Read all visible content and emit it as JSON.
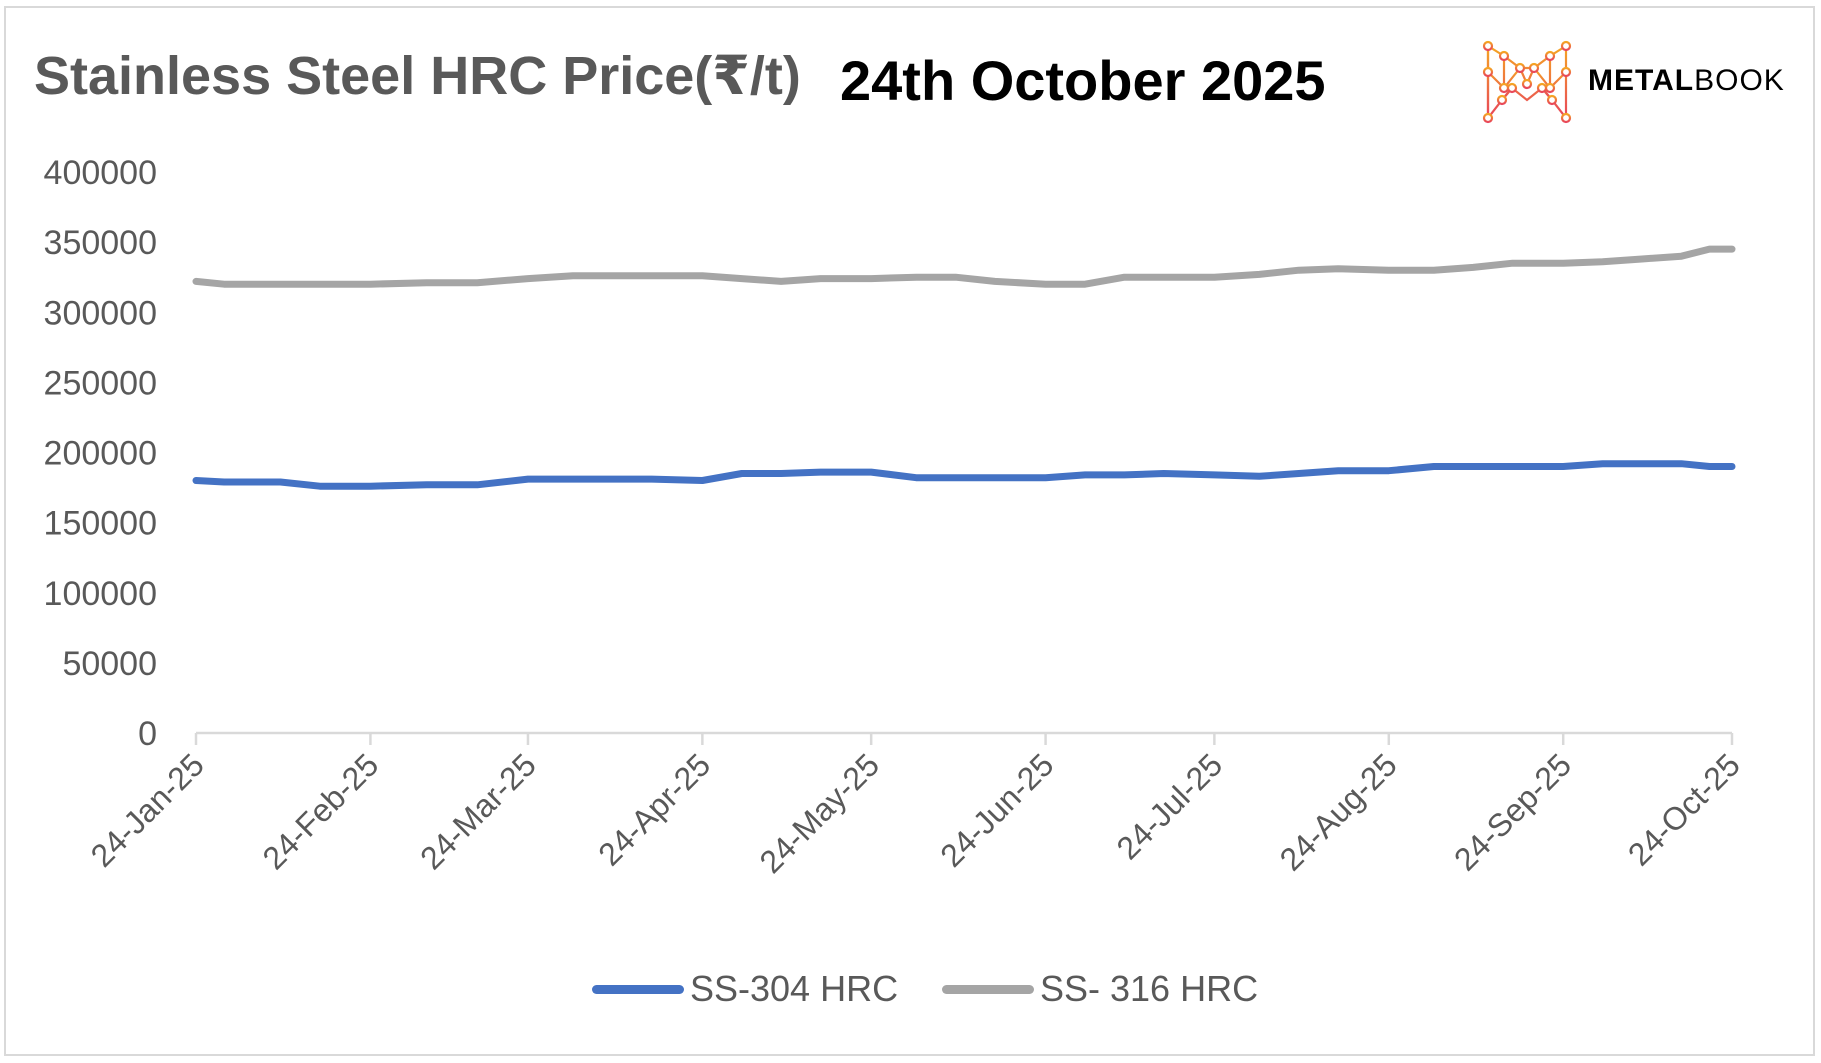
{
  "header": {
    "title": "Stainless Steel HRC Price(₹/t)",
    "date": "24th October 2025",
    "brand_part1": "METAL",
    "brand_part2": "BOOK"
  },
  "colors": {
    "series1": "#4472C4",
    "series2": "#A5A5A5",
    "logo_top": "#F5A623",
    "logo_bottom": "#E8455B"
  },
  "chart_data": {
    "type": "line",
    "title": "Stainless Steel HRC Price(₹/t)",
    "xlabel": "",
    "ylabel": "",
    "ylim": [
      0,
      400000
    ],
    "yticks": [
      0,
      50000,
      100000,
      150000,
      200000,
      250000,
      300000,
      350000,
      400000
    ],
    "xtick_labels": [
      "24-Jan-25",
      "24-Feb-25",
      "24-Mar-25",
      "24-Apr-25",
      "24-May-25",
      "24-Jun-25",
      "24-Jul-25",
      "24-Aug-25",
      "24-Sep-25",
      "24-Oct-25"
    ],
    "x_range": [
      "24-Jan-25",
      "24-Oct-25"
    ],
    "grid": false,
    "legend": "bottom",
    "series": [
      {
        "name": "SS-304 HRC",
        "points": [
          [
            "24-Jan-25",
            180000
          ],
          [
            "29-Jan-25",
            179000
          ],
          [
            "08-Feb-25",
            179000
          ],
          [
            "15-Feb-25",
            176000
          ],
          [
            "24-Feb-25",
            176000
          ],
          [
            "06-Mar-25",
            177000
          ],
          [
            "15-Mar-25",
            177000
          ],
          [
            "24-Mar-25",
            181000
          ],
          [
            "01-Apr-25",
            181000
          ],
          [
            "15-Apr-25",
            181000
          ],
          [
            "24-Apr-25",
            180000
          ],
          [
            "01-May-25",
            185000
          ],
          [
            "08-May-25",
            185000
          ],
          [
            "15-May-25",
            186000
          ],
          [
            "24-May-25",
            186000
          ],
          [
            "01-Jun-25",
            182000
          ],
          [
            "08-Jun-25",
            182000
          ],
          [
            "15-Jun-25",
            182000
          ],
          [
            "24-Jun-25",
            182000
          ],
          [
            "01-Jul-25",
            184000
          ],
          [
            "08-Jul-25",
            184000
          ],
          [
            "15-Jul-25",
            185000
          ],
          [
            "24-Jul-25",
            184000
          ],
          [
            "01-Aug-25",
            183000
          ],
          [
            "08-Aug-25",
            185000
          ],
          [
            "15-Aug-25",
            187000
          ],
          [
            "24-Aug-25",
            187000
          ],
          [
            "01-Sep-25",
            190000
          ],
          [
            "08-Sep-25",
            190000
          ],
          [
            "15-Sep-25",
            190000
          ],
          [
            "24-Sep-25",
            190000
          ],
          [
            "01-Oct-25",
            192000
          ],
          [
            "08-Oct-25",
            192000
          ],
          [
            "15-Oct-25",
            192000
          ],
          [
            "20-Oct-25",
            190000
          ],
          [
            "24-Oct-25",
            190000
          ]
        ]
      },
      {
        "name": "SS- 316 HRC",
        "points": [
          [
            "24-Jan-25",
            322000
          ],
          [
            "29-Jan-25",
            320000
          ],
          [
            "08-Feb-25",
            320000
          ],
          [
            "15-Feb-25",
            320000
          ],
          [
            "24-Feb-25",
            320000
          ],
          [
            "06-Mar-25",
            321000
          ],
          [
            "15-Mar-25",
            321000
          ],
          [
            "24-Mar-25",
            324000
          ],
          [
            "01-Apr-25",
            326000
          ],
          [
            "15-Apr-25",
            326000
          ],
          [
            "24-Apr-25",
            326000
          ],
          [
            "01-May-25",
            324000
          ],
          [
            "08-May-25",
            322000
          ],
          [
            "15-May-25",
            324000
          ],
          [
            "24-May-25",
            324000
          ],
          [
            "01-Jun-25",
            325000
          ],
          [
            "08-Jun-25",
            325000
          ],
          [
            "15-Jun-25",
            322000
          ],
          [
            "24-Jun-25",
            320000
          ],
          [
            "01-Jul-25",
            320000
          ],
          [
            "08-Jul-25",
            325000
          ],
          [
            "15-Jul-25",
            325000
          ],
          [
            "24-Jul-25",
            325000
          ],
          [
            "01-Aug-25",
            327000
          ],
          [
            "08-Aug-25",
            330000
          ],
          [
            "15-Aug-25",
            331000
          ],
          [
            "24-Aug-25",
            330000
          ],
          [
            "01-Sep-25",
            330000
          ],
          [
            "08-Sep-25",
            332000
          ],
          [
            "15-Sep-25",
            335000
          ],
          [
            "24-Sep-25",
            335000
          ],
          [
            "01-Oct-25",
            336000
          ],
          [
            "08-Oct-25",
            338000
          ],
          [
            "15-Oct-25",
            340000
          ],
          [
            "20-Oct-25",
            345000
          ],
          [
            "24-Oct-25",
            345000
          ]
        ]
      }
    ]
  }
}
